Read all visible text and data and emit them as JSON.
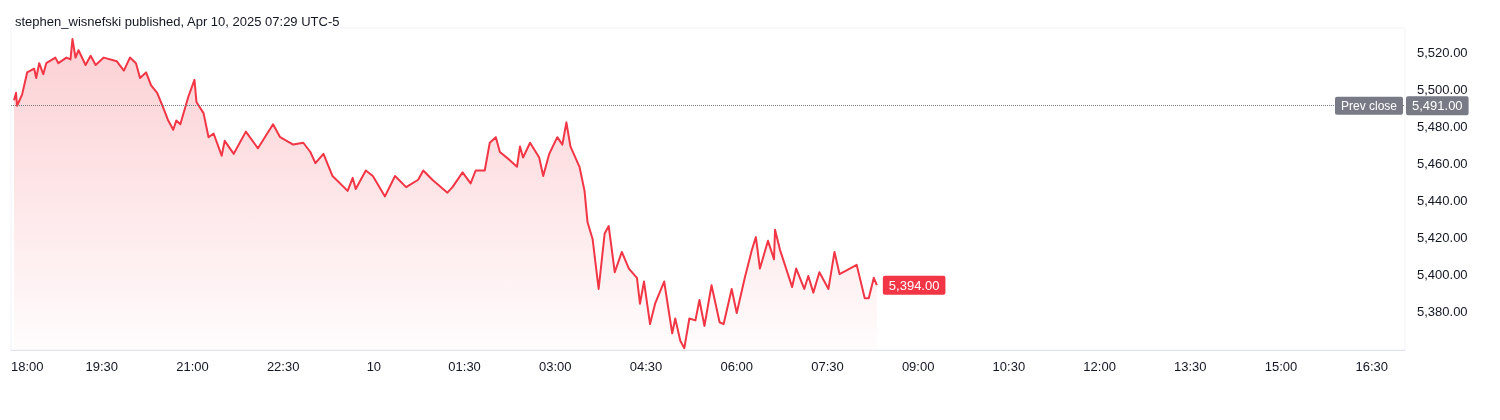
{
  "chart_data": {
    "type": "area",
    "title": "stephen_wisnefski published, Apr 10, 2025 07:29 UTC-5",
    "x": [
      "2025-04-09T18:03",
      "2025-04-09T18:05",
      "2025-04-09T18:06",
      "2025-04-09T18:11",
      "2025-04-09T18:16",
      "2025-04-09T18:23",
      "2025-04-09T18:25",
      "2025-04-09T18:28",
      "2025-04-09T18:32",
      "2025-04-09T18:35",
      "2025-04-09T18:44",
      "2025-04-09T18:47",
      "2025-04-09T18:55",
      "2025-04-09T18:59",
      "2025-04-09T19:01",
      "2025-04-09T19:04",
      "2025-04-09T19:07",
      "2025-04-09T19:14",
      "2025-04-09T19:19",
      "2025-04-09T19:24",
      "2025-04-09T19:32",
      "2025-04-09T19:45",
      "2025-04-09T19:52",
      "2025-04-09T19:58",
      "2025-04-09T20:04",
      "2025-04-09T20:08",
      "2025-04-09T20:14",
      "2025-04-09T20:19",
      "2025-04-09T20:25",
      "2025-04-09T20:31",
      "2025-04-09T20:36",
      "2025-04-09T20:41",
      "2025-04-09T20:44",
      "2025-04-09T20:48",
      "2025-04-09T20:56",
      "2025-04-09T21:02",
      "2025-04-09T21:04",
      "2025-04-09T21:11",
      "2025-04-09T21:16",
      "2025-04-09T21:21",
      "2025-04-09T21:29",
      "2025-04-09T21:32",
      "2025-04-09T21:41",
      "2025-04-09T21:53",
      "2025-04-09T22:05",
      "2025-04-09T22:20",
      "2025-04-09T22:27",
      "2025-04-09T22:40",
      "2025-04-09T22:50",
      "2025-04-09T22:57",
      "2025-04-09T23:02",
      "2025-04-09T23:10",
      "2025-04-09T23:19",
      "2025-04-09T23:34",
      "2025-04-09T23:39",
      "2025-04-09T23:42",
      "2025-04-09T23:52",
      "2025-04-09T23:59",
      "2025-04-10T00:11",
      "2025-04-10T00:21",
      "2025-04-10T00:32",
      "2025-04-10T00:44",
      "2025-04-10T00:49",
      "2025-04-10T00:58",
      "2025-04-10T01:13",
      "2025-04-10T01:18",
      "2025-04-10T01:28",
      "2025-04-10T01:36",
      "2025-04-10T01:41",
      "2025-04-10T01:50",
      "2025-04-10T01:55",
      "2025-04-10T02:01",
      "2025-04-10T02:05",
      "2025-04-10T02:14",
      "2025-04-10T02:22",
      "2025-04-10T02:25",
      "2025-04-10T02:28",
      "2025-04-10T02:35",
      "2025-04-10T02:44",
      "2025-04-10T02:48",
      "2025-04-10T02:54",
      "2025-04-10T03:02",
      "2025-04-10T03:07",
      "2025-04-10T03:11",
      "2025-04-10T03:15",
      "2025-04-10T03:24",
      "2025-04-10T03:29",
      "2025-04-10T03:32",
      "2025-04-10T03:37",
      "2025-04-10T03:43",
      "2025-04-10T03:49",
      "2025-04-10T03:53",
      "2025-04-10T03:59",
      "2025-04-10T04:06",
      "2025-04-10T04:13",
      "2025-04-10T04:21",
      "2025-04-10T04:24",
      "2025-04-10T04:28",
      "2025-04-10T04:34",
      "2025-04-10T04:39",
      "2025-04-10T04:48",
      "2025-04-10T04:56",
      "2025-04-10T04:59",
      "2025-04-10T05:04",
      "2025-04-10T05:08",
      "2025-04-10T05:13",
      "2025-04-10T05:19",
      "2025-04-10T05:23",
      "2025-04-10T05:28",
      "2025-04-10T05:35",
      "2025-04-10T05:43",
      "2025-04-10T05:47",
      "2025-04-10T05:55",
      "2025-04-10T06:00",
      "2025-04-10T06:08",
      "2025-04-10T06:15",
      "2025-04-10T06:19",
      "2025-04-10T06:23",
      "2025-04-10T06:31",
      "2025-04-10T06:37",
      "2025-04-10T06:38",
      "2025-04-10T06:43",
      "2025-04-10T06:55",
      "2025-04-10T06:59",
      "2025-04-10T07:07",
      "2025-04-10T07:11",
      "2025-04-10T07:16",
      "2025-04-10T07:22",
      "2025-04-10T07:31",
      "2025-04-10T07:37",
      "2025-04-10T07:42",
      "2025-04-10T07:49",
      "2025-04-10T07:59",
      "2025-04-10T08:07",
      "2025-04-10T08:11",
      "2025-04-10T08:16",
      "2025-04-10T08:19"
    ],
    "series": [
      {
        "color": "#f23645",
        "values": [
          5494,
          5498,
          5491,
          5497,
          5509,
          5511,
          5506,
          5514,
          5508,
          5514,
          5517,
          5514,
          5517,
          5516,
          5527,
          5517,
          5521,
          5513,
          5518,
          5513,
          5517,
          5515,
          5510,
          5517,
          5514,
          5506,
          5509,
          5502,
          5498,
          5490,
          5483,
          5478,
          5483,
          5481,
          5496,
          5505,
          5493,
          5487,
          5474,
          5476,
          5464,
          5472,
          5465,
          5477,
          5468,
          5481,
          5474,
          5470,
          5471,
          5466,
          5460,
          5465,
          5453,
          5445,
          5452,
          5446,
          5456,
          5453,
          5442,
          5453,
          5447,
          5451,
          5456,
          5451,
          5444,
          5447,
          5455,
          5449,
          5456,
          5456,
          5471,
          5474,
          5466,
          5462,
          5458,
          5469,
          5463,
          5471,
          5463,
          5453,
          5465,
          5474,
          5470,
          5482,
          5469,
          5458,
          5445,
          5428,
          5419,
          5392,
          5422,
          5426,
          5401,
          5412,
          5403,
          5398,
          5384,
          5396,
          5373,
          5384,
          5396,
          5368,
          5376,
          5364,
          5360,
          5376,
          5375,
          5386,
          5372,
          5394,
          5374,
          5373,
          5392,
          5379,
          5398,
          5413,
          5420,
          5403,
          5418,
          5408,
          5424,
          5413,
          5393,
          5403,
          5392,
          5399,
          5390,
          5401,
          5392,
          5412,
          5400,
          5402,
          5405,
          5387,
          5387,
          5398,
          5394
        ]
      }
    ],
    "xlim": [
      "2025-04-09T18:00",
      "2025-04-10T17:03"
    ],
    "xticks": [
      {
        "value": "2025-04-09T18:00",
        "label": "18:00"
      },
      {
        "value": "2025-04-09T19:30",
        "label": "19:30"
      },
      {
        "value": "2025-04-09T21:00",
        "label": "21:00"
      },
      {
        "value": "2025-04-09T22:30",
        "label": "22:30"
      },
      {
        "value": "2025-04-10T00:00",
        "label": "10"
      },
      {
        "value": "2025-04-10T01:30",
        "label": "01:30"
      },
      {
        "value": "2025-04-10T03:00",
        "label": "03:00"
      },
      {
        "value": "2025-04-10T04:30",
        "label": "04:30"
      },
      {
        "value": "2025-04-10T06:00",
        "label": "06:00"
      },
      {
        "value": "2025-04-10T07:30",
        "label": "07:30"
      },
      {
        "value": "2025-04-10T09:00",
        "label": "09:00"
      },
      {
        "value": "2025-04-10T10:30",
        "label": "10:30"
      },
      {
        "value": "2025-04-10T12:00",
        "label": "12:00"
      },
      {
        "value": "2025-04-10T13:30",
        "label": "13:30"
      },
      {
        "value": "2025-04-10T15:00",
        "label": "15:00"
      },
      {
        "value": "2025-04-10T16:30",
        "label": "16:30"
      }
    ],
    "ylim": [
      5359,
      5533
    ],
    "yticks": [
      {
        "value": 5380,
        "label": "5,380.00"
      },
      {
        "value": 5400,
        "label": "5,400.00"
      },
      {
        "value": 5420,
        "label": "5,420.00"
      },
      {
        "value": 5440,
        "label": "5,440.00"
      },
      {
        "value": 5460,
        "label": "5,460.00"
      },
      {
        "value": 5480,
        "label": "5,480.00"
      },
      {
        "value": 5500,
        "label": "5,500.00"
      },
      {
        "value": 5520,
        "label": "5,520.00"
      }
    ],
    "ref_lines": [
      {
        "axis": "y",
        "value": 5491,
        "label": "Prev close",
        "color": "#787b86",
        "line_style": "dotted"
      }
    ],
    "annotations": [
      {
        "text": "5,394.00",
        "x": "2025-04-10T08:19",
        "y": 5394
      },
      "5,491.00"
    ],
    "grid": false
  }
}
